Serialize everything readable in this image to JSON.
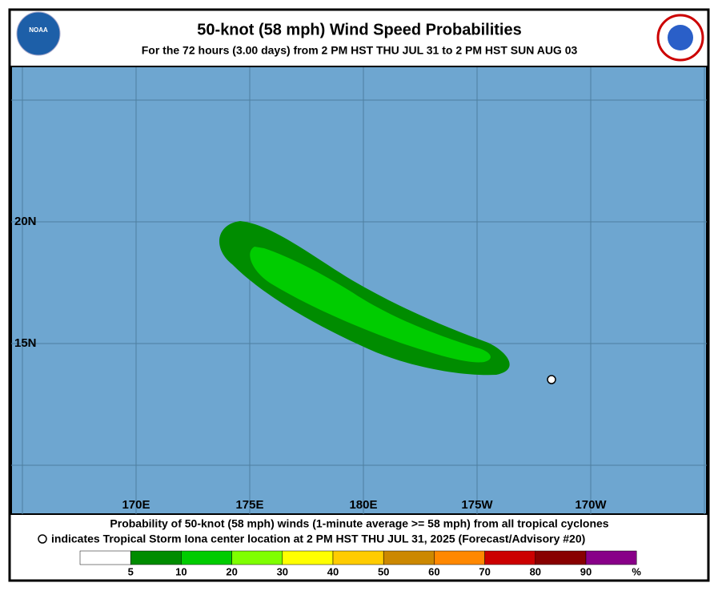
{
  "header": {
    "title": "50-knot (58 mph) Wind Speed Probabilities",
    "subtitle": "For the  72 hours (3.00 days) from 2 PM HST THU JUL 31 to 2 PM HST SUN AUG 03",
    "logo_left": "NOAA"
  },
  "map": {
    "lon_labels": [
      "170E",
      "175E",
      "180E",
      "175W",
      "170W"
    ],
    "lat_labels": [
      "20N",
      "15N"
    ]
  },
  "footer": {
    "line1": "Probability of 50-knot (58 mph) winds (1-minute average >= 58 mph) from all tropical cyclones",
    "line2": "indicates Tropical Storm Iona center location at 2 PM HST THU JUL 31, 2025 (Forecast/Advisory #20)"
  },
  "legend": {
    "colors": [
      "#ffffff",
      "#008c00",
      "#00cc00",
      "#7fff00",
      "#ffff00",
      "#ffcc00",
      "#cc8800",
      "#ff8800",
      "#cc0000",
      "#880000",
      "#880088"
    ],
    "ticks": [
      5,
      10,
      20,
      30,
      40,
      50,
      60,
      70,
      80,
      90
    ],
    "unit": "%"
  }
}
